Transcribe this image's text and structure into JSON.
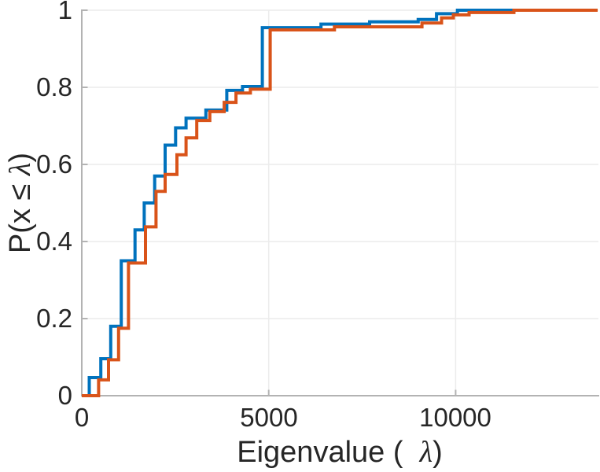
{
  "figure": {
    "background": "#ffffff",
    "axis_color": "#b3b3b3",
    "grid_color": "#ececec",
    "text_color": "#262626",
    "xlabel": {
      "prefix": "Eigenvalue (  ",
      "lambda": "λ",
      "suffix": ")"
    },
    "ylabel": {
      "prefix": "P(x ≤ ",
      "lambda": "λ",
      "suffix": ")"
    },
    "x_ticks": [
      {
        "value": 0,
        "label": "0"
      },
      {
        "value": 5000,
        "label": "5000"
      },
      {
        "value": 10000,
        "label": "10000"
      }
    ],
    "y_ticks": [
      {
        "value": 0,
        "label": "0"
      },
      {
        "value": 0.2,
        "label": "0.2"
      },
      {
        "value": 0.4,
        "label": "0.4"
      },
      {
        "value": 0.6,
        "label": "0.6"
      },
      {
        "value": 0.8,
        "label": "0.8"
      },
      {
        "value": 1,
        "label": "1"
      }
    ]
  },
  "chart_data": {
    "type": "line",
    "subtype": "ecdf-stairs",
    "title": "",
    "xlabel": "Eigenvalue (  λ)",
    "ylabel": "P(x ≤ λ)",
    "xlim": [
      0,
      13800
    ],
    "ylim": [
      0,
      1
    ],
    "grid": true,
    "legend": null,
    "x_extend": 13800,
    "series": [
      {
        "name": "cdf-blue",
        "color": "#0072BD",
        "line_width": 4,
        "points": [
          [
            0,
            0
          ],
          [
            200,
            0.047
          ],
          [
            510,
            0.096
          ],
          [
            775,
            0.18
          ],
          [
            1055,
            0.35
          ],
          [
            1425,
            0.43
          ],
          [
            1670,
            0.5
          ],
          [
            1950,
            0.57
          ],
          [
            2230,
            0.65
          ],
          [
            2510,
            0.695
          ],
          [
            2790,
            0.72
          ],
          [
            3320,
            0.741
          ],
          [
            3880,
            0.792
          ],
          [
            4300,
            0.802
          ],
          [
            4830,
            0.955
          ],
          [
            6400,
            0.964
          ],
          [
            7700,
            0.97
          ],
          [
            9000,
            0.976
          ],
          [
            9490,
            0.991
          ],
          [
            10050,
            1.0
          ]
        ]
      },
      {
        "name": "cdf-orange",
        "color": "#D95319",
        "line_width": 4,
        "points": [
          [
            0,
            0
          ],
          [
            450,
            0.041
          ],
          [
            715,
            0.093
          ],
          [
            985,
            0.175
          ],
          [
            1250,
            0.344
          ],
          [
            1705,
            0.438
          ],
          [
            1985,
            0.53
          ],
          [
            2230,
            0.574
          ],
          [
            2545,
            0.625
          ],
          [
            2790,
            0.669
          ],
          [
            3075,
            0.714
          ],
          [
            3425,
            0.737
          ],
          [
            3810,
            0.761
          ],
          [
            4125,
            0.785
          ],
          [
            4510,
            0.795
          ],
          [
            5040,
            0.949
          ],
          [
            6760,
            0.957
          ],
          [
            9100,
            0.967
          ],
          [
            9625,
            0.98
          ],
          [
            9940,
            0.988
          ],
          [
            10360,
            0.994
          ],
          [
            11560,
            1.0
          ]
        ]
      }
    ]
  }
}
